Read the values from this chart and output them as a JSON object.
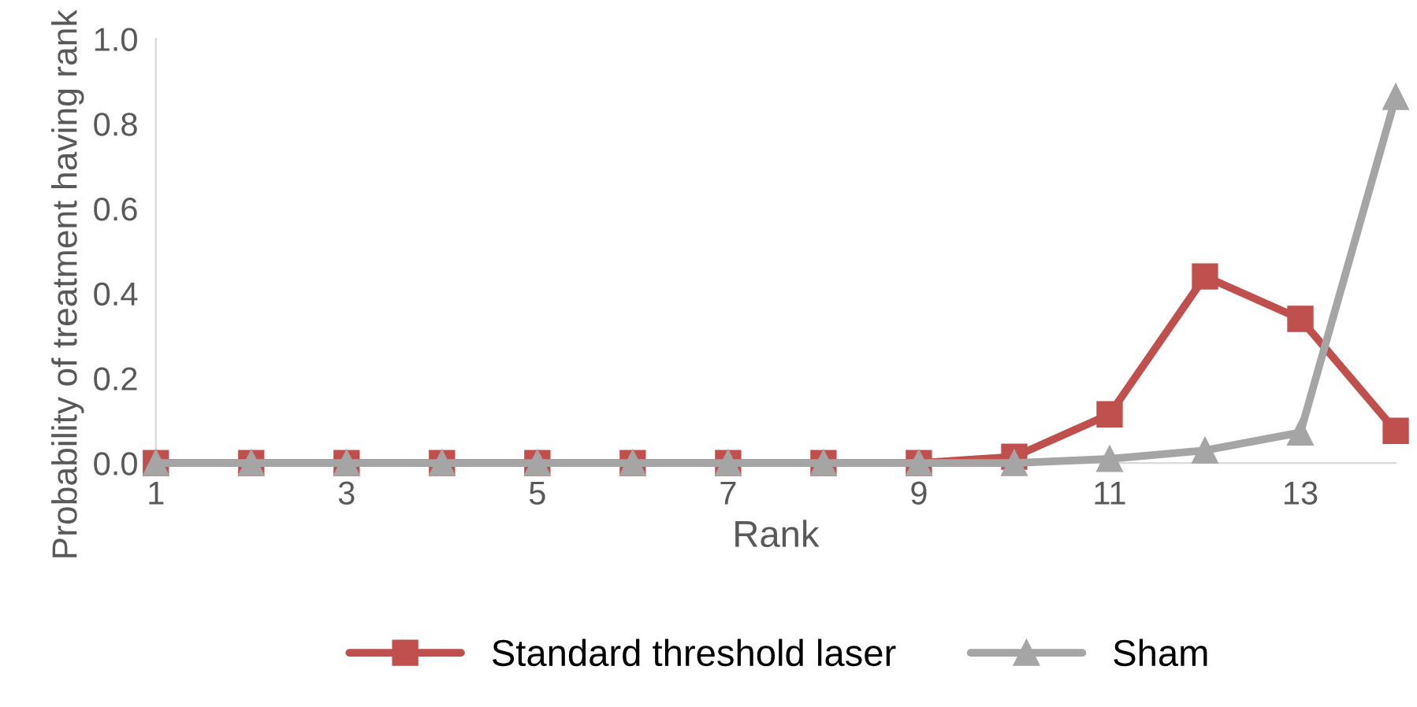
{
  "chart_data": {
    "type": "line",
    "xlabel": "Rank",
    "ylabel": "Probability of treatment having rank",
    "x": [
      1,
      2,
      3,
      4,
      5,
      6,
      7,
      8,
      9,
      10,
      11,
      12,
      13,
      14
    ],
    "xlim": [
      1,
      14
    ],
    "xticks": [
      1,
      3,
      5,
      7,
      9,
      11,
      13
    ],
    "ylim": [
      0,
      1.0
    ],
    "yticks": [
      {
        "value": 0,
        "label": "0.0"
      },
      {
        "value": 0.2,
        "label": "0.2"
      },
      {
        "value": 0.4,
        "label": "0.4"
      },
      {
        "value": 0.6,
        "label": "0.6"
      },
      {
        "value": 0.8,
        "label": "0.8"
      },
      {
        "value": 1.0,
        "label": "1.0"
      }
    ],
    "grid": false,
    "legend": "bottom",
    "series": [
      {
        "name": "Standard threshold laser",
        "color": "#c0504d",
        "marker": "square",
        "values": [
          0,
          0,
          0,
          0,
          0,
          0,
          0,
          0,
          0,
          0.015,
          0.115,
          0.44,
          0.34,
          0.076
        ]
      },
      {
        "name": "Sham",
        "color": "#a5a5a5",
        "marker": "triangle",
        "values": [
          0,
          0,
          0,
          0,
          0,
          0,
          0,
          0,
          0,
          0,
          0.01,
          0.03,
          0.072,
          0.863
        ]
      }
    ]
  }
}
